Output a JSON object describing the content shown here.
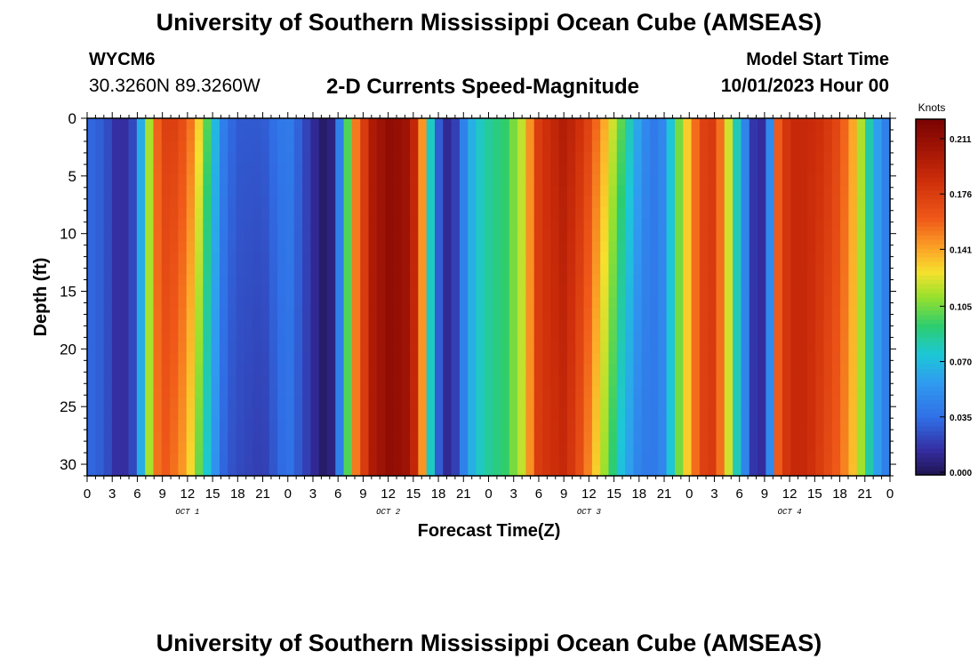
{
  "header": {
    "title": "University of Southern Mississippi Ocean Cube (AMSEAS)",
    "station": "WYCM6",
    "coordinates": "30.3260N  89.3260W",
    "subtitle": "2-D Currents Speed-Magnitude",
    "model_start_label": "Model Start Time",
    "model_start_value": "10/01/2023 Hour 00"
  },
  "footer": {
    "title": "University of Southern Mississippi Ocean Cube (AMSEAS)"
  },
  "chart_data": {
    "type": "heatmap",
    "title": "2-D Currents Speed-Magnitude",
    "xlabel": "Forecast Time(Z)",
    "ylabel": "Depth (ft)",
    "x_ticks": [
      "0",
      "3",
      "6",
      "9",
      "12",
      "15",
      "18",
      "21",
      "0",
      "3",
      "6",
      "9",
      "12",
      "15",
      "18",
      "21",
      "0",
      "3",
      "6",
      "9",
      "12",
      "15",
      "18",
      "21",
      "0",
      "3",
      "6",
      "9",
      "12",
      "15",
      "18",
      "21",
      "0"
    ],
    "day_labels": [
      "OCT 1",
      "OCT 2",
      "OCT 3",
      "OCT 4"
    ],
    "x_range_hours": [
      0,
      96
    ],
    "ylim": [
      0,
      31
    ],
    "y_ticks": [
      0,
      5,
      10,
      15,
      20,
      25,
      30
    ],
    "colorbar": {
      "unit": "Knots",
      "min": 0.0,
      "max": 0.225,
      "tick_values": [
        0.0,
        0.035,
        0.07,
        0.105,
        0.141,
        0.176,
        0.211
      ],
      "tick_labels": [
        "0.000",
        "0.035",
        "0.070",
        "0.105",
        "0.141",
        "0.176",
        "0.211"
      ]
    },
    "speed_profile": {
      "hours": [
        0,
        2,
        3,
        4,
        5.5,
        7,
        8,
        9,
        10,
        12,
        13.5,
        15,
        16.5,
        18,
        21,
        22.5,
        24,
        27,
        28.5,
        29.5,
        30.5,
        32,
        34,
        36,
        38,
        39.5,
        40.5,
        41.5,
        42.5,
        43.5,
        44.5,
        45.5,
        47,
        48.5,
        50,
        52,
        54,
        57,
        58.5,
        60,
        62,
        64,
        66,
        67.5,
        69,
        70.5,
        72,
        73.5,
        75,
        76.5,
        78,
        79.5,
        80.5,
        81.5,
        82.5,
        84,
        86,
        88,
        90,
        92,
        93,
        94,
        95,
        96
      ],
      "speed_surface": [
        0.035,
        0.03,
        0.02,
        0.012,
        0.025,
        0.09,
        0.15,
        0.175,
        0.18,
        0.165,
        0.13,
        0.08,
        0.04,
        0.03,
        0.03,
        0.038,
        0.045,
        0.015,
        0.003,
        0.012,
        0.06,
        0.15,
        0.2,
        0.215,
        0.21,
        0.185,
        0.12,
        0.05,
        0.015,
        0.012,
        0.03,
        0.06,
        0.08,
        0.09,
        0.095,
        0.12,
        0.18,
        0.2,
        0.19,
        0.175,
        0.14,
        0.1,
        0.06,
        0.04,
        0.05,
        0.1,
        0.14,
        0.175,
        0.18,
        0.13,
        0.07,
        0.02,
        0.012,
        0.03,
        0.16,
        0.19,
        0.19,
        0.185,
        0.17,
        0.135,
        0.1,
        0.07,
        0.05,
        0.04
      ],
      "speed_bottom": [
        0.035,
        0.03,
        0.02,
        0.012,
        0.025,
        0.09,
        0.15,
        0.165,
        0.16,
        0.14,
        0.1,
        0.06,
        0.03,
        0.025,
        0.02,
        0.03,
        0.04,
        0.015,
        0.003,
        0.012,
        0.06,
        0.15,
        0.2,
        0.215,
        0.21,
        0.185,
        0.12,
        0.05,
        0.015,
        0.012,
        0.03,
        0.06,
        0.08,
        0.09,
        0.095,
        0.12,
        0.18,
        0.19,
        0.175,
        0.15,
        0.11,
        0.07,
        0.045,
        0.04,
        0.05,
        0.1,
        0.14,
        0.175,
        0.18,
        0.13,
        0.07,
        0.02,
        0.012,
        0.03,
        0.16,
        0.19,
        0.19,
        0.175,
        0.16,
        0.13,
        0.1,
        0.07,
        0.05,
        0.04
      ]
    }
  }
}
